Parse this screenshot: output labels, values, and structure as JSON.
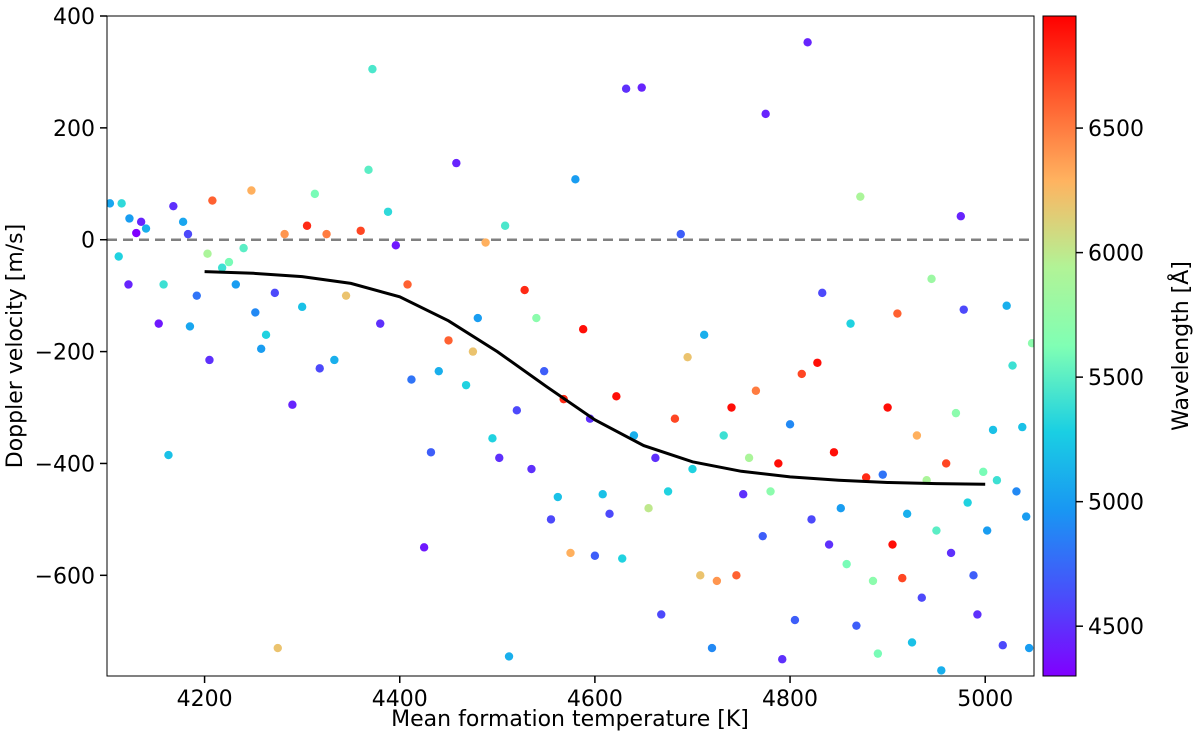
{
  "chart_data": {
    "type": "scatter",
    "title": "",
    "xlabel": "Mean formation temperature [K]",
    "ylabel": "Doppler velocity [m/s]",
    "xlim": [
      4100,
      5050
    ],
    "ylim": [
      -780,
      400
    ],
    "xticks": [
      "4200",
      "4400",
      "4600",
      "4800",
      "5000"
    ],
    "yticks": [
      "400",
      "200",
      "0",
      "−200",
      "−400",
      "−600"
    ],
    "zero_line": {
      "y": 0,
      "style": "dashed",
      "color": "#808080"
    },
    "colorbar": {
      "label": "Wavelength [Å]",
      "range": [
        4300,
        6950
      ],
      "ticks": [
        "6500",
        "6000",
        "5500",
        "5000",
        "4500"
      ],
      "colormap": "rainbow"
    },
    "fit_curve": {
      "color": "#000000",
      "x": [
        4200,
        4250,
        4300,
        4350,
        4400,
        4450,
        4500,
        4550,
        4600,
        4650,
        4700,
        4750,
        4800,
        4850,
        4900,
        4950,
        5000
      ],
      "y": [
        -57,
        -60,
        -66,
        -78,
        -102,
        -145,
        -200,
        -262,
        -322,
        -368,
        -397,
        -414,
        -424,
        -430,
        -434,
        -436,
        -437
      ]
    },
    "points": [
      {
        "x": 4103,
        "y": 65,
        "wl": 5050
      },
      {
        "x": 4115,
        "y": 65,
        "wl": 5350
      },
      {
        "x": 4123,
        "y": 38,
        "wl": 5000
      },
      {
        "x": 4130,
        "y": 12,
        "wl": 4300
      },
      {
        "x": 4135,
        "y": 32,
        "wl": 4450
      },
      {
        "x": 4140,
        "y": 20,
        "wl": 5100
      },
      {
        "x": 4112,
        "y": -30,
        "wl": 5300
      },
      {
        "x": 4122,
        "y": -80,
        "wl": 4450
      },
      {
        "x": 4153,
        "y": -150,
        "wl": 4400
      },
      {
        "x": 4158,
        "y": -80,
        "wl": 5400
      },
      {
        "x": 4163,
        "y": -385,
        "wl": 5200
      },
      {
        "x": 4168,
        "y": 60,
        "wl": 4500
      },
      {
        "x": 4178,
        "y": 32,
        "wl": 5050
      },
      {
        "x": 4183,
        "y": 10,
        "wl": 4600
      },
      {
        "x": 4185,
        "y": -155,
        "wl": 5050
      },
      {
        "x": 4192,
        "y": -100,
        "wl": 4800
      },
      {
        "x": 4203,
        "y": -25,
        "wl": 5900
      },
      {
        "x": 4205,
        "y": -215,
        "wl": 4500
      },
      {
        "x": 4208,
        "y": 70,
        "wl": 6600
      },
      {
        "x": 4218,
        "y": -50,
        "wl": 5400
      },
      {
        "x": 4225,
        "y": -40,
        "wl": 5600
      },
      {
        "x": 4232,
        "y": -80,
        "wl": 5000
      },
      {
        "x": 4240,
        "y": -15,
        "wl": 5500
      },
      {
        "x": 4248,
        "y": 88,
        "wl": 6300
      },
      {
        "x": 4252,
        "y": -130,
        "wl": 4900
      },
      {
        "x": 4258,
        "y": -195,
        "wl": 5000
      },
      {
        "x": 4263,
        "y": -170,
        "wl": 5300
      },
      {
        "x": 4272,
        "y": -95,
        "wl": 4600
      },
      {
        "x": 4275,
        "y": -730,
        "wl": 6200
      },
      {
        "x": 4282,
        "y": 10,
        "wl": 6400
      },
      {
        "x": 4290,
        "y": -295,
        "wl": 4450
      },
      {
        "x": 4300,
        "y": -120,
        "wl": 5200
      },
      {
        "x": 4305,
        "y": 25,
        "wl": 6800
      },
      {
        "x": 4313,
        "y": 82,
        "wl": 5600
      },
      {
        "x": 4318,
        "y": -230,
        "wl": 4600
      },
      {
        "x": 4325,
        "y": 10,
        "wl": 6500
      },
      {
        "x": 4333,
        "y": -215,
        "wl": 5100
      },
      {
        "x": 4345,
        "y": -100,
        "wl": 6200
      },
      {
        "x": 4360,
        "y": 16,
        "wl": 6700
      },
      {
        "x": 4368,
        "y": 125,
        "wl": 5500
      },
      {
        "x": 4372,
        "y": 305,
        "wl": 5450
      },
      {
        "x": 4380,
        "y": -150,
        "wl": 4500
      },
      {
        "x": 4388,
        "y": 50,
        "wl": 5350
      },
      {
        "x": 4396,
        "y": -10,
        "wl": 4400
      },
      {
        "x": 4408,
        "y": -80,
        "wl": 6600
      },
      {
        "x": 4412,
        "y": -250,
        "wl": 4800
      },
      {
        "x": 4425,
        "y": -550,
        "wl": 4400
      },
      {
        "x": 4432,
        "y": -380,
        "wl": 4700
      },
      {
        "x": 4440,
        "y": -235,
        "wl": 5100
      },
      {
        "x": 4450,
        "y": -180,
        "wl": 6600
      },
      {
        "x": 4458,
        "y": 137,
        "wl": 4450
      },
      {
        "x": 4468,
        "y": -260,
        "wl": 5300
      },
      {
        "x": 4475,
        "y": -200,
        "wl": 6200
      },
      {
        "x": 4480,
        "y": -140,
        "wl": 5000
      },
      {
        "x": 4488,
        "y": -5,
        "wl": 6300
      },
      {
        "x": 4495,
        "y": -355,
        "wl": 5300
      },
      {
        "x": 4502,
        "y": -390,
        "wl": 4500
      },
      {
        "x": 4508,
        "y": 25,
        "wl": 5450
      },
      {
        "x": 4512,
        "y": -745,
        "wl": 5100
      },
      {
        "x": 4520,
        "y": -305,
        "wl": 4600
      },
      {
        "x": 4528,
        "y": -90,
        "wl": 6800
      },
      {
        "x": 4535,
        "y": -410,
        "wl": 4500
      },
      {
        "x": 4540,
        "y": -140,
        "wl": 5700
      },
      {
        "x": 4548,
        "y": -235,
        "wl": 4700
      },
      {
        "x": 4555,
        "y": -500,
        "wl": 4600
      },
      {
        "x": 4562,
        "y": -460,
        "wl": 5200
      },
      {
        "x": 4568,
        "y": -285,
        "wl": 6800
      },
      {
        "x": 4575,
        "y": -560,
        "wl": 6300
      },
      {
        "x": 4580,
        "y": 108,
        "wl": 5000
      },
      {
        "x": 4588,
        "y": -160,
        "wl": 6900
      },
      {
        "x": 4595,
        "y": -320,
        "wl": 4500
      },
      {
        "x": 4600,
        "y": -565,
        "wl": 4700
      },
      {
        "x": 4608,
        "y": -455,
        "wl": 5200
      },
      {
        "x": 4615,
        "y": -490,
        "wl": 4600
      },
      {
        "x": 4622,
        "y": -280,
        "wl": 6900
      },
      {
        "x": 4628,
        "y": -570,
        "wl": 5300
      },
      {
        "x": 4632,
        "y": 270,
        "wl": 4500
      },
      {
        "x": 4640,
        "y": -350,
        "wl": 5100
      },
      {
        "x": 4648,
        "y": 272,
        "wl": 4450
      },
      {
        "x": 4655,
        "y": -480,
        "wl": 6000
      },
      {
        "x": 4662,
        "y": -390,
        "wl": 4500
      },
      {
        "x": 4668,
        "y": -670,
        "wl": 4600
      },
      {
        "x": 4675,
        "y": -450,
        "wl": 5300
      },
      {
        "x": 4682,
        "y": -320,
        "wl": 6700
      },
      {
        "x": 4688,
        "y": 10,
        "wl": 4700
      },
      {
        "x": 4695,
        "y": -210,
        "wl": 6200
      },
      {
        "x": 4700,
        "y": -410,
        "wl": 5300
      },
      {
        "x": 4708,
        "y": -600,
        "wl": 6200
      },
      {
        "x": 4712,
        "y": -170,
        "wl": 5100
      },
      {
        "x": 4720,
        "y": -730,
        "wl": 4900
      },
      {
        "x": 4725,
        "y": -610,
        "wl": 6400
      },
      {
        "x": 4732,
        "y": -350,
        "wl": 5400
      },
      {
        "x": 4740,
        "y": -300,
        "wl": 6900
      },
      {
        "x": 4745,
        "y": -600,
        "wl": 6600
      },
      {
        "x": 4752,
        "y": -455,
        "wl": 4500
      },
      {
        "x": 4758,
        "y": -390,
        "wl": 5900
      },
      {
        "x": 4765,
        "y": -270,
        "wl": 6500
      },
      {
        "x": 4772,
        "y": -530,
        "wl": 4700
      },
      {
        "x": 4775,
        "y": 225,
        "wl": 4450
      },
      {
        "x": 4780,
        "y": -450,
        "wl": 5700
      },
      {
        "x": 4788,
        "y": -400,
        "wl": 6900
      },
      {
        "x": 4792,
        "y": -750,
        "wl": 4500
      },
      {
        "x": 4800,
        "y": -330,
        "wl": 4900
      },
      {
        "x": 4805,
        "y": -680,
        "wl": 4700
      },
      {
        "x": 4812,
        "y": -240,
        "wl": 6700
      },
      {
        "x": 4818,
        "y": 353,
        "wl": 4450
      },
      {
        "x": 4822,
        "y": -500,
        "wl": 4600
      },
      {
        "x": 4828,
        "y": -220,
        "wl": 6900
      },
      {
        "x": 4833,
        "y": -95,
        "wl": 4600
      },
      {
        "x": 4840,
        "y": -545,
        "wl": 4500
      },
      {
        "x": 4845,
        "y": -380,
        "wl": 6900
      },
      {
        "x": 4852,
        "y": -480,
        "wl": 5000
      },
      {
        "x": 4858,
        "y": -580,
        "wl": 5600
      },
      {
        "x": 4862,
        "y": -150,
        "wl": 5300
      },
      {
        "x": 4868,
        "y": -690,
        "wl": 4700
      },
      {
        "x": 4872,
        "y": 77,
        "wl": 5900
      },
      {
        "x": 4878,
        "y": -425,
        "wl": 6800
      },
      {
        "x": 4885,
        "y": -610,
        "wl": 5700
      },
      {
        "x": 4890,
        "y": -740,
        "wl": 5600
      },
      {
        "x": 4895,
        "y": -420,
        "wl": 4800
      },
      {
        "x": 4900,
        "y": -300,
        "wl": 6900
      },
      {
        "x": 4905,
        "y": -545,
        "wl": 6900
      },
      {
        "x": 4910,
        "y": -132,
        "wl": 6600
      },
      {
        "x": 4915,
        "y": -605,
        "wl": 6700
      },
      {
        "x": 4920,
        "y": -490,
        "wl": 5100
      },
      {
        "x": 4925,
        "y": -720,
        "wl": 5200
      },
      {
        "x": 4930,
        "y": -350,
        "wl": 6300
      },
      {
        "x": 4935,
        "y": -640,
        "wl": 4600
      },
      {
        "x": 4940,
        "y": -430,
        "wl": 5900
      },
      {
        "x": 4945,
        "y": -70,
        "wl": 5800
      },
      {
        "x": 4950,
        "y": -520,
        "wl": 5500
      },
      {
        "x": 4955,
        "y": -770,
        "wl": 5100
      },
      {
        "x": 4960,
        "y": -400,
        "wl": 6700
      },
      {
        "x": 4965,
        "y": -560,
        "wl": 4500
      },
      {
        "x": 4970,
        "y": -310,
        "wl": 5700
      },
      {
        "x": 4975,
        "y": 42,
        "wl": 4450
      },
      {
        "x": 4978,
        "y": -125,
        "wl": 4600
      },
      {
        "x": 4982,
        "y": -470,
        "wl": 5300
      },
      {
        "x": 4988,
        "y": -600,
        "wl": 4700
      },
      {
        "x": 4992,
        "y": -670,
        "wl": 4500
      },
      {
        "x": 4998,
        "y": -415,
        "wl": 5600
      },
      {
        "x": 5002,
        "y": -520,
        "wl": 5000
      },
      {
        "x": 5008,
        "y": -340,
        "wl": 5200
      },
      {
        "x": 5012,
        "y": -430,
        "wl": 5400
      },
      {
        "x": 5018,
        "y": -725,
        "wl": 4600
      },
      {
        "x": 5022,
        "y": -118,
        "wl": 5100
      },
      {
        "x": 5028,
        "y": -225,
        "wl": 5400
      },
      {
        "x": 5032,
        "y": -450,
        "wl": 4900
      },
      {
        "x": 5038,
        "y": -335,
        "wl": 5200
      },
      {
        "x": 5042,
        "y": -495,
        "wl": 5000
      },
      {
        "x": 5048,
        "y": -185,
        "wl": 5700
      },
      {
        "x": 5045,
        "y": -730,
        "wl": 5000
      }
    ]
  }
}
